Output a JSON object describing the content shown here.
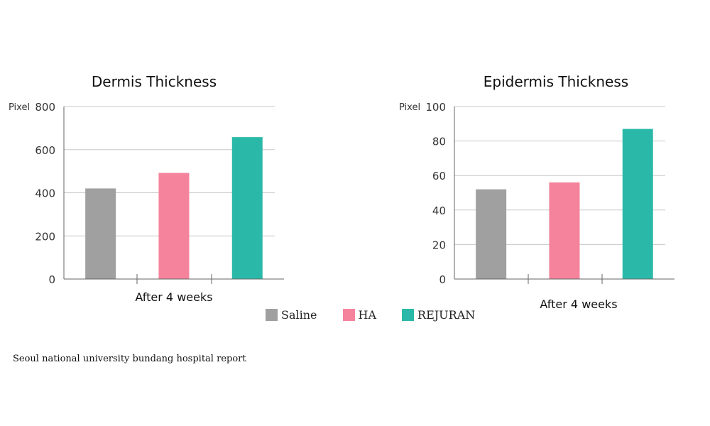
{
  "legend": [
    {
      "label": "Saline",
      "color": "#a0a0a0"
    },
    {
      "label": "HA",
      "color": "#f4839b"
    },
    {
      "label": "REJURAN",
      "color": "#2ab9a8"
    }
  ],
  "source": "Seoul national university bundang hospital report",
  "chart_data": [
    {
      "type": "bar",
      "title": "Dermis Thickness",
      "ylabel": "Pixel",
      "xlabel": "After 4 weeks",
      "categories": [
        "Saline",
        "HA",
        "REJURAN"
      ],
      "values": [
        420,
        492,
        658
      ],
      "colors": [
        "#a0a0a0",
        "#f4839b",
        "#2ab9a8"
      ],
      "ylim": [
        0,
        800
      ],
      "yticks": [
        0,
        200,
        400,
        600,
        800
      ],
      "grid": true
    },
    {
      "type": "bar",
      "title": "Epidermis Thickness",
      "ylabel": "Pixel",
      "xlabel": "After 4 weeks",
      "categories": [
        "Saline",
        "HA",
        "REJURAN"
      ],
      "values": [
        52,
        56,
        87
      ],
      "colors": [
        "#a0a0a0",
        "#f4839b",
        "#2ab9a8"
      ],
      "ylim": [
        0,
        100
      ],
      "yticks": [
        0,
        20,
        40,
        60,
        80,
        100
      ],
      "grid": true
    }
  ]
}
